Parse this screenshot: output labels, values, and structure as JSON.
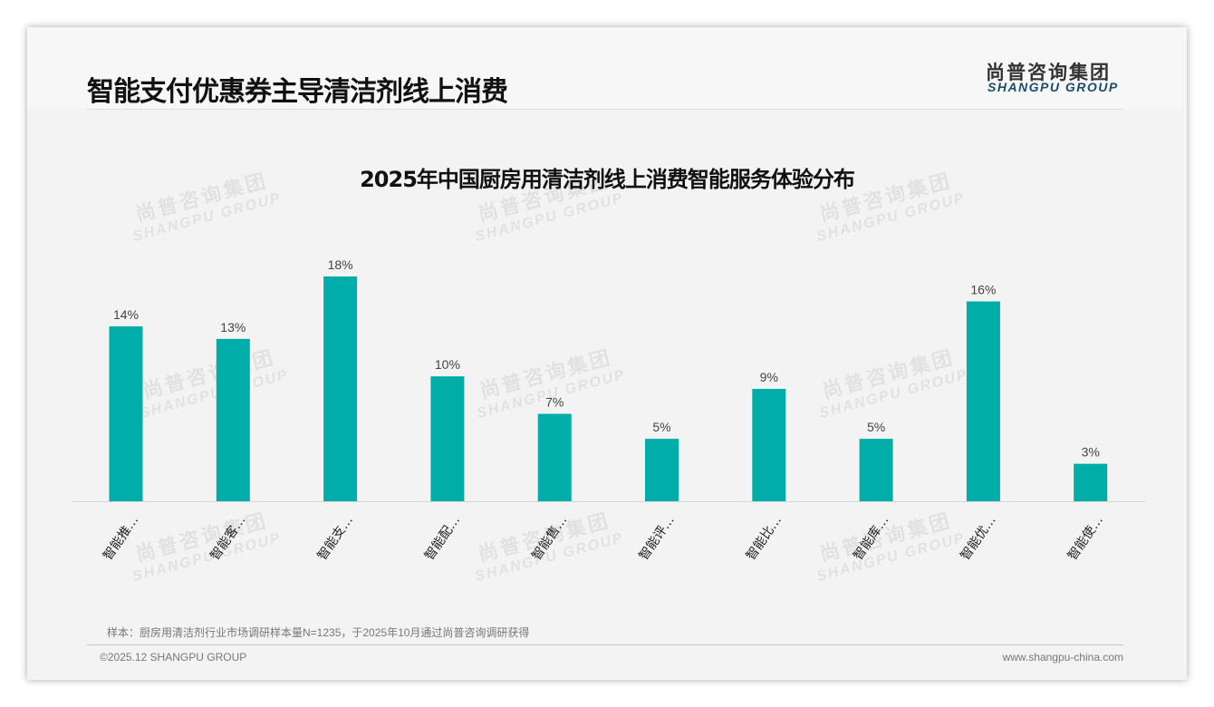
{
  "header": {
    "title": "智能支付优惠券主导清洁剂线上消费",
    "logo_cn": "尚普咨询集团",
    "logo_en": "SHANGPU GROUP"
  },
  "watermark": {
    "cn": "尚普咨询集团",
    "en": "SHANGPU GROUP"
  },
  "chart_data": {
    "type": "bar",
    "title": "2025年中国厨房用清洁剂线上消费智能服务体验分布",
    "categories": [
      "智能推…",
      "智能客…",
      "智能支…",
      "智能配…",
      "智能售…",
      "智能评…",
      "智能比…",
      "智能库…",
      "智能优…",
      "智能使…"
    ],
    "values": [
      14,
      13,
      18,
      10,
      7,
      5,
      9,
      5,
      16,
      3
    ],
    "value_labels": [
      "14%",
      "13%",
      "18%",
      "10%",
      "7%",
      "5%",
      "9%",
      "5%",
      "16%",
      "3%"
    ],
    "ylim": [
      0,
      18
    ],
    "bar_color": "#00ada8",
    "xlabel": "",
    "ylabel": "",
    "grid": false
  },
  "footer": {
    "note": "样本：厨房用清洁剂行业市场调研样本量N=1235，于2025年10月通过尚普咨询调研获得",
    "copyright": "©2025.12 SHANGPU GROUP",
    "url": "www.shangpu-china.com"
  }
}
